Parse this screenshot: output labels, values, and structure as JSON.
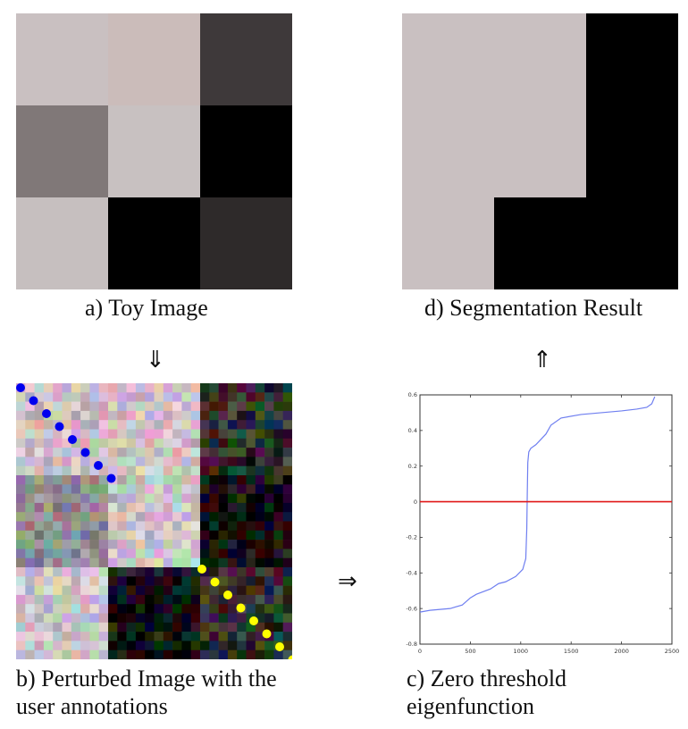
{
  "panels": {
    "a": {
      "caption": "a) Toy Image",
      "grid": [
        [
          "#c9c0c1",
          "#cbbcba",
          "#3e393a"
        ],
        [
          "#807878",
          "#c8c1c1",
          "#000000"
        ],
        [
          "#c6bfbf",
          "#000000",
          "#2e2a2a"
        ]
      ]
    },
    "b": {
      "caption_line1": "b) Perturbed Image with the",
      "caption_line2": "user annotations",
      "base_grid": [
        [
          "#cdbcc4",
          "#d0c0c7",
          "#2a2a2a"
        ],
        [
          "#8f8a8e",
          "#c8c3c6",
          "#0c0a0c"
        ],
        [
          "#c7c0c5",
          "#0c0b0c",
          "#2c2a2b"
        ]
      ],
      "annotation_colors": {
        "foreground": "#0000ee",
        "background": "#ffff00"
      }
    },
    "c": {
      "caption_line1": "c) Zero threshold",
      "caption_line2": "eigenfunction"
    },
    "d": {
      "caption": "d) Segmentation Result",
      "colors": {
        "light": "#c9c0c1",
        "dark": "#000000"
      }
    }
  },
  "arrows": {
    "a_to_b": "⇓",
    "b_to_c": "⇒",
    "c_to_d": "⇑"
  },
  "chart_data": {
    "type": "line",
    "title": "",
    "xlabel": "",
    "ylabel": "",
    "xlim": [
      0,
      2500
    ],
    "ylim": [
      -0.8,
      0.6
    ],
    "x_ticks": [
      "0",
      "500",
      "1000",
      "1500",
      "2000",
      "2500"
    ],
    "y_ticks": [
      "-0.8",
      "-0.6",
      "-0.4",
      "-0.2",
      "0",
      "0.2",
      "0.4",
      "0.6"
    ],
    "series": [
      {
        "color": "#6f7ff0",
        "x": [
          0,
          100,
          300,
          420,
          500,
          560,
          700,
          780,
          850,
          950,
          1020,
          1050,
          1060,
          1065,
          1070,
          1080,
          1100,
          1150,
          1200,
          1250,
          1300,
          1400,
          1600,
          1800,
          2000,
          2150,
          2250,
          2300,
          2330
        ],
        "y": [
          -0.62,
          -0.61,
          -0.6,
          -0.58,
          -0.54,
          -0.52,
          -0.49,
          -0.46,
          -0.45,
          -0.42,
          -0.38,
          -0.32,
          -0.15,
          0.05,
          0.22,
          0.28,
          0.3,
          0.32,
          0.35,
          0.38,
          0.43,
          0.47,
          0.49,
          0.5,
          0.51,
          0.52,
          0.53,
          0.55,
          0.59
        ]
      },
      {
        "color": "#e01818",
        "x": [
          0,
          2500
        ],
        "y": [
          0,
          0
        ]
      }
    ]
  }
}
